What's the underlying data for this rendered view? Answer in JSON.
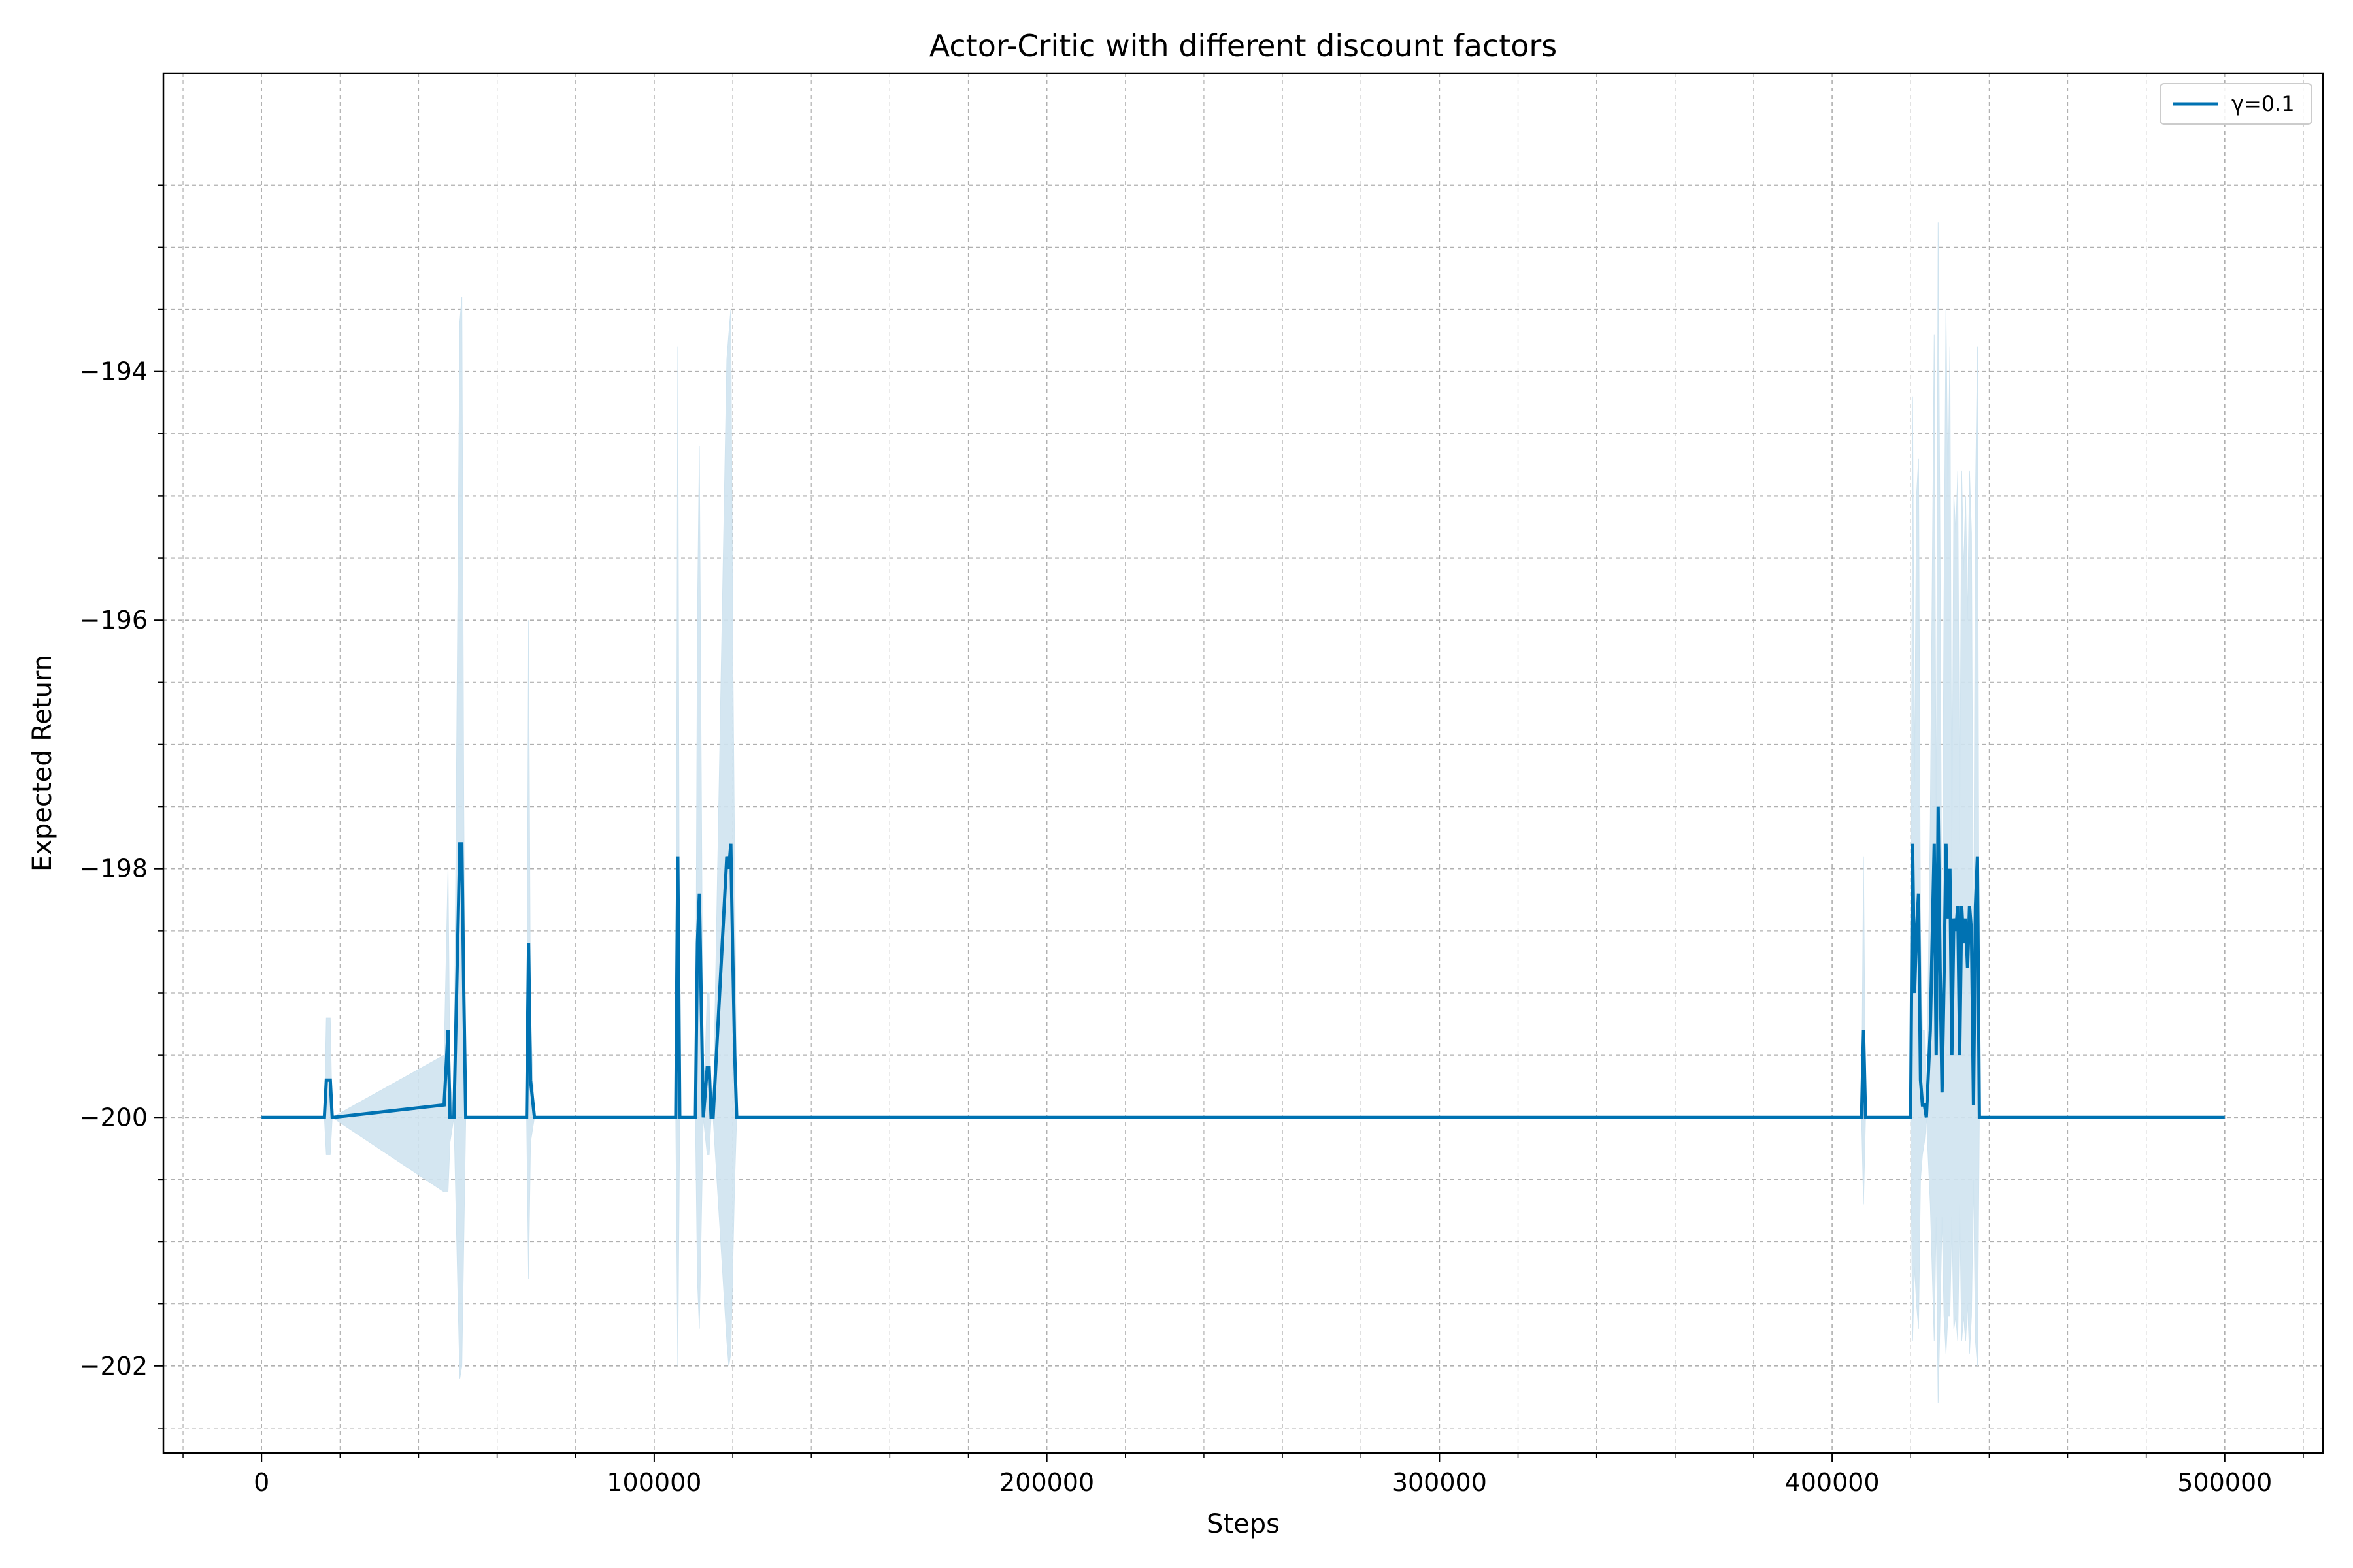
{
  "chart_data": {
    "type": "line",
    "title": "Actor-Critic with different discount factors",
    "xlabel": "Steps",
    "ylabel": "Expected Return",
    "xlim": [
      -25000,
      525000
    ],
    "ylim": [
      -202.7,
      -191.6
    ],
    "xticks": [
      0,
      100000,
      200000,
      300000,
      400000,
      500000
    ],
    "xtick_labels": [
      "0",
      "100000",
      "200000",
      "300000",
      "400000",
      "500000"
    ],
    "yticks": [
      -194,
      -196,
      -198,
      -200,
      -202
    ],
    "ytick_labels": [
      "−194",
      "−196",
      "−198",
      "−200",
      "−202"
    ],
    "grid": true,
    "minor_grid": true,
    "legend_position": "upper right",
    "colors": {
      "line": "#0072b2",
      "band": "#cfe3ef",
      "grid": "#b0b0b0"
    },
    "series": [
      {
        "name": "γ=0.1",
        "x": [
          0,
          16000,
          16500,
          17500,
          18000,
          46500,
          47500,
          48000,
          49000,
          50500,
          51000,
          51500,
          52000,
          67500,
          68000,
          68500,
          69500,
          105500,
          106000,
          106500,
          110500,
          111000,
          111500,
          112500,
          113500,
          114000,
          114500,
          115000,
          118500,
          119000,
          119500,
          120000,
          120500,
          121000,
          407500,
          408000,
          408500,
          420000,
          420500,
          421000,
          421500,
          422000,
          422500,
          423000,
          423500,
          424000,
          425000,
          426000,
          426500,
          427000,
          427500,
          428000,
          428500,
          429000,
          429500,
          430000,
          430500,
          431000,
          431500,
          432000,
          432500,
          433000,
          433500,
          434000,
          434500,
          435000,
          435500,
          436000,
          436500,
          437000,
          437500,
          438000,
          438500,
          439000,
          500000
        ],
        "y": [
          -200,
          -200,
          -199.7,
          -199.7,
          -200,
          -199.9,
          -199.3,
          -200,
          -200,
          -197.8,
          -197.8,
          -199.0,
          -200,
          -200,
          -198.6,
          -199.7,
          -200,
          -200,
          -197.9,
          -200,
          -200,
          -198.6,
          -198.2,
          -200,
          -199.6,
          -199.6,
          -200,
          -200,
          -197.9,
          -198.0,
          -197.8,
          -198.7,
          -199.5,
          -200,
          -200,
          -199.3,
          -200,
          -200,
          -197.8,
          -199.0,
          -198.5,
          -198.2,
          -199.7,
          -199.9,
          -199.9,
          -200,
          -199.3,
          -197.8,
          -199.5,
          -197.5,
          -198.8,
          -199.8,
          -198.9,
          -197.8,
          -198.4,
          -198.0,
          -199.5,
          -198.4,
          -198.5,
          -198.3,
          -199.5,
          -198.3,
          -198.6,
          -198.4,
          -198.8,
          -198.3,
          -198.5,
          -199.9,
          -198.3,
          -197.9,
          -200,
          -200,
          -200,
          -200,
          -200
        ],
        "lower": [
          -200,
          -200,
          -200.3,
          -200.3,
          -200,
          -200.6,
          -200.6,
          -200.2,
          -200,
          -202.1,
          -202.0,
          -201.0,
          -200,
          -200,
          -201.3,
          -200.2,
          -200,
          -200,
          -202.0,
          -200,
          -200,
          -201.3,
          -201.7,
          -200,
          -200.3,
          -200.3,
          -200,
          -200,
          -201.8,
          -202.0,
          -201.9,
          -201.2,
          -200.5,
          -200,
          -200,
          -200.7,
          -200,
          -200,
          -201.8,
          -201.2,
          -201.5,
          -201.7,
          -200.5,
          -200.3,
          -200.2,
          -200,
          -200.7,
          -201.8,
          -200.8,
          -202.3,
          -201.6,
          -200.8,
          -201.6,
          -201.9,
          -201.6,
          -201.6,
          -200.8,
          -201.7,
          -201.6,
          -201.8,
          -200.7,
          -201.8,
          -201.6,
          -201.8,
          -201.5,
          -201.9,
          -201.6,
          -200.5,
          -201.8,
          -202.0,
          -200,
          -200,
          -200,
          -200,
          -200
        ],
        "upper": [
          -200,
          -200,
          -199.2,
          -199.2,
          -200,
          -199.5,
          -198.0,
          -199.7,
          -200,
          -193.6,
          -193.4,
          -197.5,
          -200,
          -200,
          -196.0,
          -199.2,
          -200,
          -200,
          -193.8,
          -200,
          -200,
          -196.0,
          -194.6,
          -200,
          -199.0,
          -199.0,
          -200,
          -200,
          -193.9,
          -193.7,
          -193.5,
          -196.2,
          -198.0,
          -200,
          -200,
          -197.9,
          -200,
          -200,
          -194.2,
          -197.3,
          -195.0,
          -194.7,
          -198.5,
          -199.3,
          -199.3,
          -200,
          -197.6,
          -193.7,
          -197.8,
          -192.8,
          -195.5,
          -199.0,
          -195.8,
          -193.5,
          -195.0,
          -193.8,
          -198.0,
          -195.0,
          -195.3,
          -194.8,
          -197.8,
          -194.8,
          -195.6,
          -195.0,
          -196.0,
          -194.8,
          -195.3,
          -199.0,
          -195.0,
          -193.8,
          -200,
          -200,
          -200,
          -200,
          -200
        ]
      }
    ]
  }
}
